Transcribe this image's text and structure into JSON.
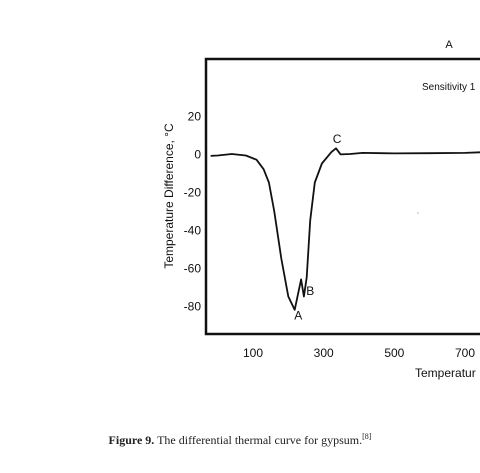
{
  "chart_data": {
    "type": "line",
    "panel_label": "A",
    "sensitivity_text": "Sensitivity 1",
    "ylabel": "Temperature Difference, °C",
    "xlabel": "Temperatur",
    "x_ticks": [
      "100",
      "300",
      "500",
      "700"
    ],
    "x_tick_values": [
      100,
      300,
      500,
      700
    ],
    "y_ticks": [
      "20",
      "0",
      "-20",
      "-40",
      "-60",
      "-80"
    ],
    "y_tick_values": [
      20,
      0,
      -20,
      -40,
      -60,
      -80
    ],
    "xlim": [
      -20,
      760
    ],
    "ylim": [
      -95,
      50
    ],
    "grid": false,
    "series": [
      {
        "points": [
          [
            -20,
            -1
          ],
          [
            0,
            -0.8
          ],
          [
            40,
            0
          ],
          [
            80,
            -0.8
          ],
          [
            110,
            -3
          ],
          [
            130,
            -8
          ],
          [
            145,
            -15
          ],
          [
            160,
            -30
          ],
          [
            180,
            -55
          ],
          [
            200,
            -75
          ],
          [
            218,
            -82
          ],
          [
            236,
            -66
          ],
          [
            244,
            -75
          ],
          [
            252,
            -65
          ],
          [
            262,
            -35
          ],
          [
            275,
            -15
          ],
          [
            295,
            -5
          ],
          [
            322,
            1
          ],
          [
            335,
            3
          ],
          [
            348,
            -0.2
          ],
          [
            375,
            0
          ],
          [
            410,
            0.6
          ],
          [
            500,
            0.3
          ],
          [
            600,
            0.4
          ],
          [
            700,
            0.6
          ],
          [
            760,
            1
          ]
        ]
      }
    ],
    "annotations": [
      {
        "text": "A",
        "x": 228,
        "y": -85
      },
      {
        "text": "B",
        "x": 262,
        "y": -72
      },
      {
        "text": "C",
        "x": 338,
        "y": 8
      }
    ]
  },
  "caption": {
    "label": "Figure 9.",
    "text": " The differential thermal curve for gypsum.",
    "ref": "[8]"
  }
}
